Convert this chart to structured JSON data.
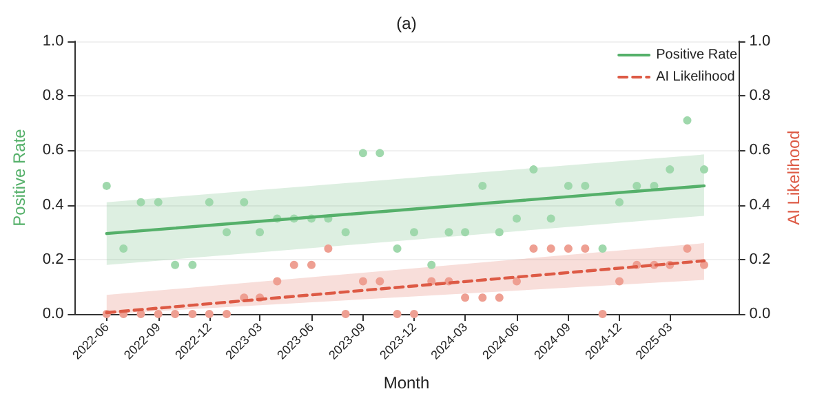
{
  "chart_data": {
    "type": "scatter",
    "title": "(a)",
    "xlabel": "Month",
    "ylabel": "Positive Rate",
    "y2label": "AI Likelihood",
    "x": [
      "2022-06",
      "2022-07",
      "2022-08",
      "2022-09",
      "2022-10",
      "2022-11",
      "2022-12",
      "2023-01",
      "2023-02",
      "2023-03",
      "2023-04",
      "2023-05",
      "2023-06",
      "2023-07",
      "2023-08",
      "2023-09",
      "2023-10",
      "2023-11",
      "2023-12",
      "2024-01",
      "2024-02",
      "2024-03",
      "2024-04",
      "2024-05",
      "2024-06",
      "2024-07",
      "2024-08",
      "2024-09",
      "2024-10",
      "2024-11",
      "2024-12",
      "2025-01",
      "2025-02",
      "2025-03",
      "2025-04",
      "2025-05"
    ],
    "series": [
      {
        "color": "#9fd8ac",
        "marker": "circle",
        "values": [
          0.47,
          0.24,
          0.41,
          0.41,
          0.18,
          0.18,
          0.41,
          0.3,
          0.41,
          0.3,
          0.35,
          0.35,
          0.35,
          0.35,
          0.3,
          0.59,
          0.59,
          0.24,
          0.3,
          0.18,
          0.3,
          0.3,
          0.47,
          0.3,
          0.35,
          0.53,
          0.35,
          0.47,
          0.47,
          0.24,
          0.41,
          0.47,
          0.47,
          0.53,
          0.71,
          0.53
        ]
      },
      {
        "type": "line",
        "name": "Positive Rate",
        "color": "#55b06a",
        "line_style": "solid",
        "marker": "none",
        "x": [
          "2022-06",
          "2025-05"
        ],
        "values": [
          0.295,
          0.47
        ],
        "lower": [
          0.18,
          0.36
        ],
        "upper": [
          0.41,
          0.585
        ]
      },
      {
        "axis": "y2",
        "color": "#ee9f92",
        "marker": "circle",
        "values": [
          0,
          0,
          0,
          0,
          0,
          0,
          0,
          0,
          0.06,
          0.06,
          0.12,
          0.18,
          0.18,
          0.24,
          0,
          0.12,
          0.12,
          0,
          0,
          0.12,
          0.12,
          0.06,
          0.06,
          0.06,
          0.12,
          0.24,
          0.24,
          0.24,
          0.24,
          0,
          0.12,
          0.18,
          0.18,
          0.18,
          0.24,
          0.18
        ]
      },
      {
        "type": "line",
        "axis": "y2",
        "name": "AI Likelihood",
        "color": "#dd5a45",
        "line_style": "dashed",
        "marker": "none",
        "x": [
          "2022-06",
          "2025-05"
        ],
        "values": [
          0.005,
          0.195
        ],
        "lower": [
          0,
          0.125
        ],
        "upper": [
          0.07,
          0.26
        ]
      }
    ],
    "xlim": [
      "2022-04-05",
      "2025-07-01"
    ],
    "xticks": [
      "2022-06",
      "2022-09",
      "2022-12",
      "2023-03",
      "2023-06",
      "2023-09",
      "2023-12",
      "2024-03",
      "2024-06",
      "2024-09",
      "2024-12",
      "2025-03"
    ],
    "ylim": [
      0,
      1
    ],
    "yticks": [
      {
        "value": 0,
        "label": "0.0"
      },
      {
        "value": 0.2,
        "label": "0.2"
      },
      {
        "value": 0.4,
        "label": "0.4"
      },
      {
        "value": 0.6,
        "label": "0.6"
      },
      {
        "value": 0.8,
        "label": "0.8"
      },
      {
        "value": 1,
        "label": "1.0"
      }
    ],
    "y2lim": [
      0,
      1
    ],
    "y2ticks": [
      {
        "value": 0,
        "label": "0.0"
      },
      {
        "value": 0.2,
        "label": "0.2"
      },
      {
        "value": 0.4,
        "label": "0.4"
      },
      {
        "value": 0.6,
        "label": "0.6"
      },
      {
        "value": 0.8,
        "label": "0.8"
      },
      {
        "value": 1,
        "label": "1.0"
      }
    ],
    "grid": "y",
    "legend": "top right"
  }
}
